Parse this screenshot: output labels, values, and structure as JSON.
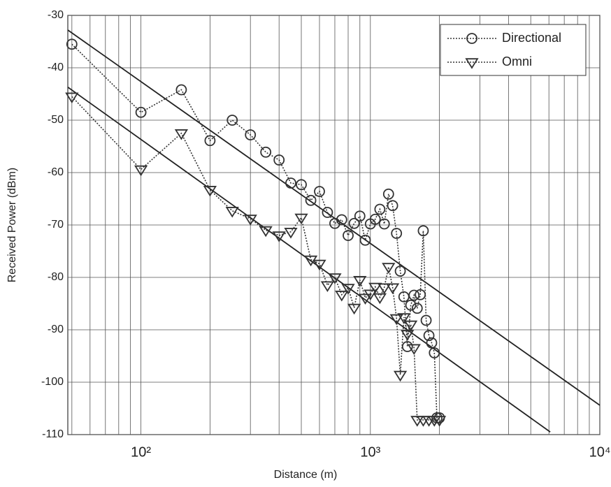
{
  "chart_data": {
    "type": "line",
    "x_label": "Distance (m)",
    "y_label": "Received Power (dBm)",
    "xscale": "log",
    "grid": true,
    "minor_grid": true,
    "legend": "upper right",
    "xlim": [
      48,
      10000
    ],
    "ylim": [
      -110,
      -30
    ],
    "xticks": [
      {
        "value": 100,
        "label": "10²"
      },
      {
        "value": 1000,
        "label": "10³"
      },
      {
        "value": 10000,
        "label": "10⁴"
      }
    ],
    "yticks": [
      -110,
      -100,
      -90,
      -80,
      -70,
      -60,
      -50,
      -40,
      -30
    ],
    "series": [
      {
        "name": "Directional",
        "color": "#333333",
        "marker": "circle",
        "x": [
          50,
          100,
          150,
          200,
          250,
          300,
          350,
          400,
          450,
          500,
          550,
          600,
          650,
          700,
          750,
          800,
          850,
          900,
          950,
          1000,
          1050,
          1100,
          1150,
          1200,
          1250,
          1300,
          1350,
          1400,
          1450,
          1500,
          1550,
          1600,
          1650,
          1700,
          1750,
          1800,
          1850,
          1900,
          1950,
          2000
        ],
        "values": [
          -35.5,
          -48.5,
          -44.2,
          -53.9,
          -50,
          -52.8,
          -56.1,
          -57.6,
          -62,
          -62.3,
          -65.3,
          -63.6,
          -67.6,
          -69.7,
          -69,
          -72,
          -69.7,
          -68.3,
          -72.9,
          -69.8,
          -68.9,
          -67,
          -69.8,
          -64.1,
          -66.3,
          -71.6,
          -78.8,
          -83.7,
          -93.2,
          -85.3,
          -83.4,
          -85.9,
          -83.3,
          -71.1,
          -88.2,
          -91.1,
          -92.5,
          -94.4,
          -106.8,
          -106.8
        ]
      },
      {
        "name": "Omni",
        "color": "#333333",
        "marker": "triangle",
        "x": [
          50,
          100,
          150,
          200,
          250,
          300,
          350,
          400,
          450,
          500,
          550,
          600,
          650,
          700,
          750,
          800,
          850,
          900,
          950,
          1000,
          1050,
          1100,
          1150,
          1200,
          1250,
          1300,
          1350,
          1400,
          1450,
          1500,
          1550,
          1600,
          1700,
          1800,
          1900,
          2000
        ],
        "values": [
          -45.5,
          -59.4,
          -52.5,
          -63.3,
          -67.3,
          -68.8,
          -71,
          -72,
          -71.3,
          -68.6,
          -76.6,
          -77.4,
          -81.5,
          -80,
          -83.3,
          -82,
          -85.8,
          -80.5,
          -83.9,
          -83.1,
          -81.8,
          -83.8,
          -81.9,
          -78,
          -81.9,
          -87.8,
          -98.6,
          -87.6,
          -90.8,
          -89,
          -93.5,
          -107.2,
          -107.2,
          -107.2,
          -107.2,
          -107.2
        ]
      }
    ],
    "fit_lines": [
      {
        "color": "#222222",
        "x": [
          48,
          10000
        ],
        "values": [
          -32.8,
          -104.4
        ]
      },
      {
        "color": "#222222",
        "x": [
          48,
          6080
        ],
        "values": [
          -43.7,
          -109.5
        ]
      }
    ]
  }
}
